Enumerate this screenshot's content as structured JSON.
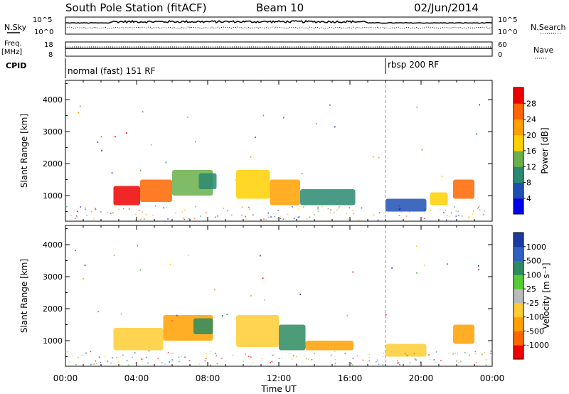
{
  "header": {
    "station": "South Pole Station (fitACF)",
    "beam": "Beam 10",
    "date": "02/Jun/2014"
  },
  "top_panels": {
    "nsky_label": "N.Sky",
    "nsearch_label": "N.Search",
    "sky_ticks": [
      "10^5",
      "10^0"
    ],
    "freq_label_1": "Freq.",
    "freq_label_2": "[MHz]",
    "freq_ticks": [
      "18",
      "8"
    ],
    "nave_label": "Nave",
    "nave_ticks": [
      "60",
      "0"
    ],
    "cpid_label": "CPID",
    "cpid_segments": [
      {
        "label": "normal (fast) 151 RF",
        "start_hour": 0
      },
      {
        "label": "rbsp 200 RF",
        "start_hour": 18
      }
    ]
  },
  "chart_data": [
    {
      "type": "heatmap",
      "title": "",
      "quantity": "Power",
      "xlabel": "Time UT",
      "ylabel": "Slant Range [km]",
      "xlim_hours": [
        0,
        24
      ],
      "ylim": [
        200,
        4600
      ],
      "x_ticks": [
        "00:00",
        "04:00",
        "08:00",
        "12:00",
        "16:00",
        "20:00",
        "00:00"
      ],
      "y_ticks": [
        1000,
        2000,
        3000,
        4000
      ],
      "colorbar": {
        "label": "Power [dB]",
        "ticks": [
          "4",
          "8",
          "12",
          "16",
          "20",
          "24",
          "28"
        ],
        "colors": [
          "#0000ee",
          "#1e50b4",
          "#2a8a70",
          "#6ab04a",
          "#ffd000",
          "#ffa000",
          "#ff6600",
          "#ee0000"
        ]
      },
      "echo_regions": [
        {
          "t0": 2.7,
          "t1": 4.2,
          "r0": 700,
          "r1": 1300,
          "level": "28"
        },
        {
          "t0": 4.2,
          "t1": 6.0,
          "r0": 800,
          "r1": 1500,
          "level": "24"
        },
        {
          "t0": 6.0,
          "t1": 8.3,
          "r0": 1000,
          "r1": 1800,
          "level": "12"
        },
        {
          "t0": 7.5,
          "t1": 8.5,
          "r0": 1200,
          "r1": 1700,
          "level": "8"
        },
        {
          "t0": 9.6,
          "t1": 11.5,
          "r0": 900,
          "r1": 1800,
          "level": "16"
        },
        {
          "t0": 11.5,
          "t1": 13.2,
          "r0": 700,
          "r1": 1500,
          "level": "20"
        },
        {
          "t0": 13.2,
          "t1": 16.3,
          "r0": 700,
          "r1": 1200,
          "level": "8"
        },
        {
          "t0": 18.0,
          "t1": 20.3,
          "r0": 500,
          "r1": 900,
          "level": "4"
        },
        {
          "t0": 20.5,
          "t1": 21.5,
          "r0": 700,
          "r1": 1100,
          "level": "16"
        },
        {
          "t0": 21.8,
          "t1": 23.0,
          "r0": 900,
          "r1": 1500,
          "level": "24"
        }
      ]
    },
    {
      "type": "heatmap",
      "title": "",
      "quantity": "Velocity",
      "xlabel": "Time UT",
      "ylabel": "Slant Range [km]",
      "xlim_hours": [
        0,
        24
      ],
      "ylim": [
        200,
        4600
      ],
      "x_ticks": [
        "00:00",
        "04:00",
        "08:00",
        "12:00",
        "16:00",
        "20:00",
        "00:00"
      ],
      "y_ticks": [
        1000,
        2000,
        3000,
        4000
      ],
      "colorbar": {
        "label": "Velocity [m s⁻¹]",
        "ticks": [
          "-1000",
          "-500",
          "-100",
          "-25",
          "25",
          "100",
          "500",
          "1000"
        ],
        "colors": [
          "#ee0000",
          "#ff6600",
          "#ffa000",
          "#ffcc33",
          "#bbbbbb",
          "#55cc33",
          "#2e8b60",
          "#3060c0",
          "#1a3aa0"
        ]
      },
      "echo_regions": [
        {
          "t0": 2.7,
          "t1": 5.5,
          "r0": 700,
          "r1": 1400,
          "level": "-100"
        },
        {
          "t0": 5.5,
          "t1": 8.3,
          "r0": 1000,
          "r1": 1800,
          "level": "-500"
        },
        {
          "t0": 7.2,
          "t1": 8.3,
          "r0": 1200,
          "r1": 1700,
          "level": "100"
        },
        {
          "t0": 9.6,
          "t1": 12.0,
          "r0": 800,
          "r1": 1800,
          "level": "-100"
        },
        {
          "t0": 12.0,
          "t1": 13.5,
          "r0": 700,
          "r1": 1500,
          "level": "100"
        },
        {
          "t0": 13.5,
          "t1": 16.2,
          "r0": 700,
          "r1": 1000,
          "level": "-500"
        },
        {
          "t0": 18.0,
          "t1": 20.3,
          "r0": 500,
          "r1": 900,
          "level": "-100"
        },
        {
          "t0": 21.8,
          "t1": 23.0,
          "r0": 900,
          "r1": 1500,
          "level": "-500"
        }
      ]
    }
  ]
}
